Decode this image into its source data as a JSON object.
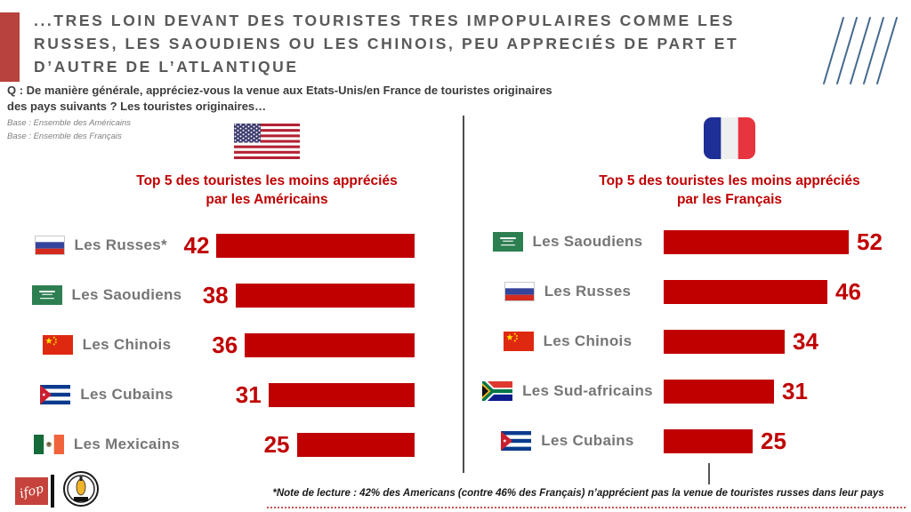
{
  "slide": {
    "title": "...TRES LOIN DEVANT DES TOURISTES TRES IMPOPULAIRES COMME LES RUSSES, LES SAOUDIENS OU LES CHINOIS, PEU APPRECIÉS DE PART ET D’AUTRE DE L’ATLANTIQUE",
    "question": "Q : De manière générale, appréciez-vous la venue aux Etats-Unis/en France de touristes originaires des pays suivants ? Les touristes originaires…",
    "base_americans": "Base : Ensemble des Américains",
    "base_french": "Base : Ensemble des Français"
  },
  "chart_data": [
    {
      "type": "bar",
      "orientation": "horizontal",
      "bars_aligned": "right-edge",
      "title": "Top 5 des touristes les moins appréciés par les Américains",
      "header_flag": "united-states",
      "categories": [
        "Les Russes*",
        "Les Saoudiens",
        "Les Chinois",
        "Les Cubains",
        "Les Mexicains"
      ],
      "values": [
        42,
        38,
        36,
        31,
        25
      ],
      "flags": [
        "russia",
        "saudi-arabia",
        "china",
        "cuba",
        "mexico"
      ],
      "value_unit": "%",
      "value_range": [
        0,
        100
      ],
      "bar_color": "#C00000"
    },
    {
      "type": "bar",
      "orientation": "horizontal",
      "bars_aligned": "left-edge",
      "title": "Top 5 des touristes les moins appréciés par les Français",
      "header_flag": "france",
      "categories": [
        "Les Saoudiens",
        "Les Russes",
        "Les Chinois",
        "Les Sud-africains",
        "Les Cubains"
      ],
      "values": [
        52,
        46,
        34,
        31,
        25
      ],
      "flags": [
        "saudi-arabia",
        "russia",
        "china",
        "south-africa",
        "cuba"
      ],
      "value_unit": "%",
      "value_range": [
        0,
        100
      ],
      "bar_color": "#C00000"
    }
  ],
  "footer": {
    "note": "*Note de lecture : 42% des Americans (contre 46% des Français) n’apprécient pas la venue de touristes russes dans leur pays",
    "ifop_logo_text": "ifop"
  },
  "colors": {
    "accent_red": "#B8433E",
    "bar_red": "#C00000",
    "label_gray": "#767676",
    "title_gray": "#595959",
    "diagonal_blue": "#44698D"
  }
}
